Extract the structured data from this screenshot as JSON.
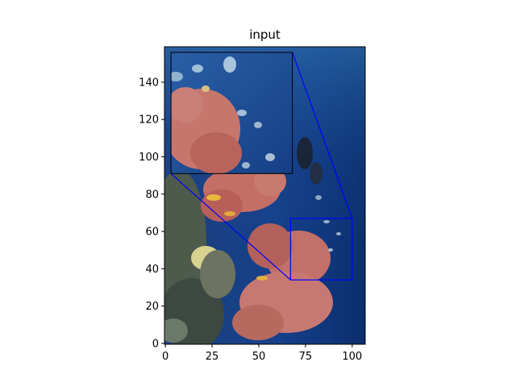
{
  "chart_data": {
    "type": "image",
    "title": "input",
    "xlabel": "",
    "ylabel": "",
    "image_extent": {
      "x": [
        0,
        107
      ],
      "y": [
        0,
        159
      ]
    },
    "xlim": [
      -0.5,
      107
    ],
    "ylim": [
      -0.5,
      159
    ],
    "origin": "lower",
    "grid": false,
    "x_ticks": [
      0,
      25,
      50,
      75,
      100
    ],
    "x_tick_labels": [
      "0",
      "25",
      "50",
      "75",
      "100"
    ],
    "y_ticks": [
      0,
      20,
      40,
      60,
      80,
      100,
      120,
      140
    ],
    "y_tick_labels": [
      "0",
      "20",
      "40",
      "60",
      "80",
      "100",
      "120",
      "140"
    ],
    "zoom_region": {
      "x": [
        67,
        100
      ],
      "y": [
        34,
        67
      ]
    },
    "inset_axes": {
      "x": [
        3,
        68
      ],
      "y": [
        91,
        156
      ]
    },
    "annotation_color": "#0000ff",
    "image_description": "underwater coral reef with pink soft corals, fish and a diver on deep blue water"
  }
}
